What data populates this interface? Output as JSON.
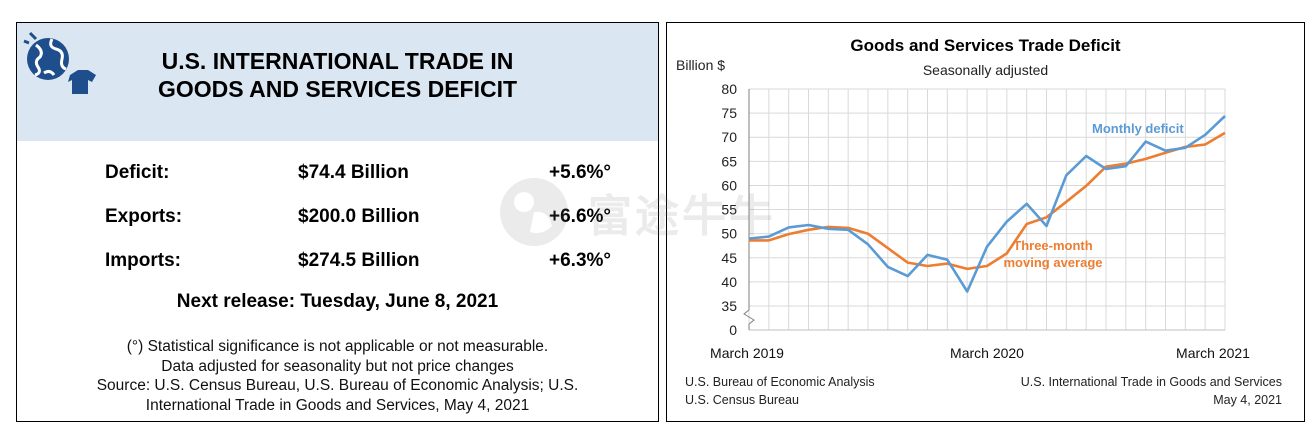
{
  "left_panel": {
    "icon": "globe-shirt-icon",
    "title": "U.S. INTERNATIONAL TRADE IN\nGOODS AND SERVICES DEFICIT",
    "stats": [
      {
        "label": "Deficit:",
        "value": "$74.4 Billion",
        "change": "+5.6%°"
      },
      {
        "label": "Exports:",
        "value": "$200.0 Billion",
        "change": "+6.6%°"
      },
      {
        "label": "Imports:",
        "value": "$274.5 Billion",
        "change": "+6.3%°"
      }
    ],
    "next_release": "Next release: Tuesday, June 8, 2021",
    "footnotes": [
      "(°) Statistical significance is not applicable or not measurable.",
      "Data adjusted for seasonality but not price changes",
      "Source: U.S. Census Bureau, U.S. Bureau of Economic Analysis; U.S.",
      "International Trade in Goods and Services, May 4, 2021"
    ]
  },
  "watermark": {
    "text": "富途牛牛",
    "icon": "futu-logo-icon"
  },
  "right_panel": {
    "source_left": [
      "U.S. Bureau of Economic Analysis",
      "U.S. Census Bureau"
    ],
    "source_right": [
      "U.S. International Trade in Goods and Services",
      "May 4, 2021"
    ]
  },
  "chart_data": {
    "type": "line",
    "title": "Goods and Services Trade Deficit",
    "subtitle": "Seasonally adjusted",
    "ylabel": "Billion $",
    "ylim": [
      35,
      80
    ],
    "y_break_below": 35,
    "y_axis_min_label": "0",
    "yticks": [
      35,
      40,
      45,
      50,
      55,
      60,
      65,
      70,
      75,
      80
    ],
    "yticklabels": [
      "0",
      "35",
      "40",
      "45",
      "50",
      "55",
      "60",
      "65",
      "70",
      "75",
      "80"
    ],
    "xtick_labels": [
      "March 2019",
      "March 2020",
      "March 2021"
    ],
    "xtick_index": [
      0,
      12,
      24
    ],
    "grid": true,
    "x": [
      "Mar 2019",
      "Apr 2019",
      "May 2019",
      "Jun 2019",
      "Jul 2019",
      "Aug 2019",
      "Sep 2019",
      "Oct 2019",
      "Nov 2019",
      "Dec 2019",
      "Jan 2020",
      "Feb 2020",
      "Mar 2020",
      "Apr 2020",
      "May 2020",
      "Jun 2020",
      "Jul 2020",
      "Aug 2020",
      "Sep 2020",
      "Oct 2020",
      "Nov 2020",
      "Dec 2020",
      "Jan 2021",
      "Feb 2021",
      "Mar 2021"
    ],
    "series": [
      {
        "name": "Monthly deficit",
        "color": "#5b9bd5",
        "values": [
          49.0,
          49.4,
          51.3,
          51.8,
          51.0,
          50.8,
          47.8,
          43.1,
          41.2,
          45.6,
          44.6,
          38.0,
          47.3,
          52.5,
          56.2,
          51.6,
          62.1,
          66.1,
          63.4,
          64.0,
          69.1,
          67.2,
          67.8,
          70.5,
          74.4
        ]
      },
      {
        "name": "Three-month\nmoving average",
        "color": "#ed7d31",
        "values": [
          48.6,
          48.6,
          49.9,
          50.8,
          51.4,
          51.2,
          50.0,
          47.0,
          44.0,
          43.3,
          43.8,
          42.7,
          43.3,
          45.9,
          52.0,
          53.4,
          56.6,
          59.9,
          63.9,
          64.5,
          65.5,
          66.8,
          68.0,
          68.5,
          70.9
        ]
      }
    ],
    "series_label_colors": {
      "Monthly deficit": "#5b9bd5",
      "Three-month\nmoving average": "#ed7d31"
    }
  }
}
